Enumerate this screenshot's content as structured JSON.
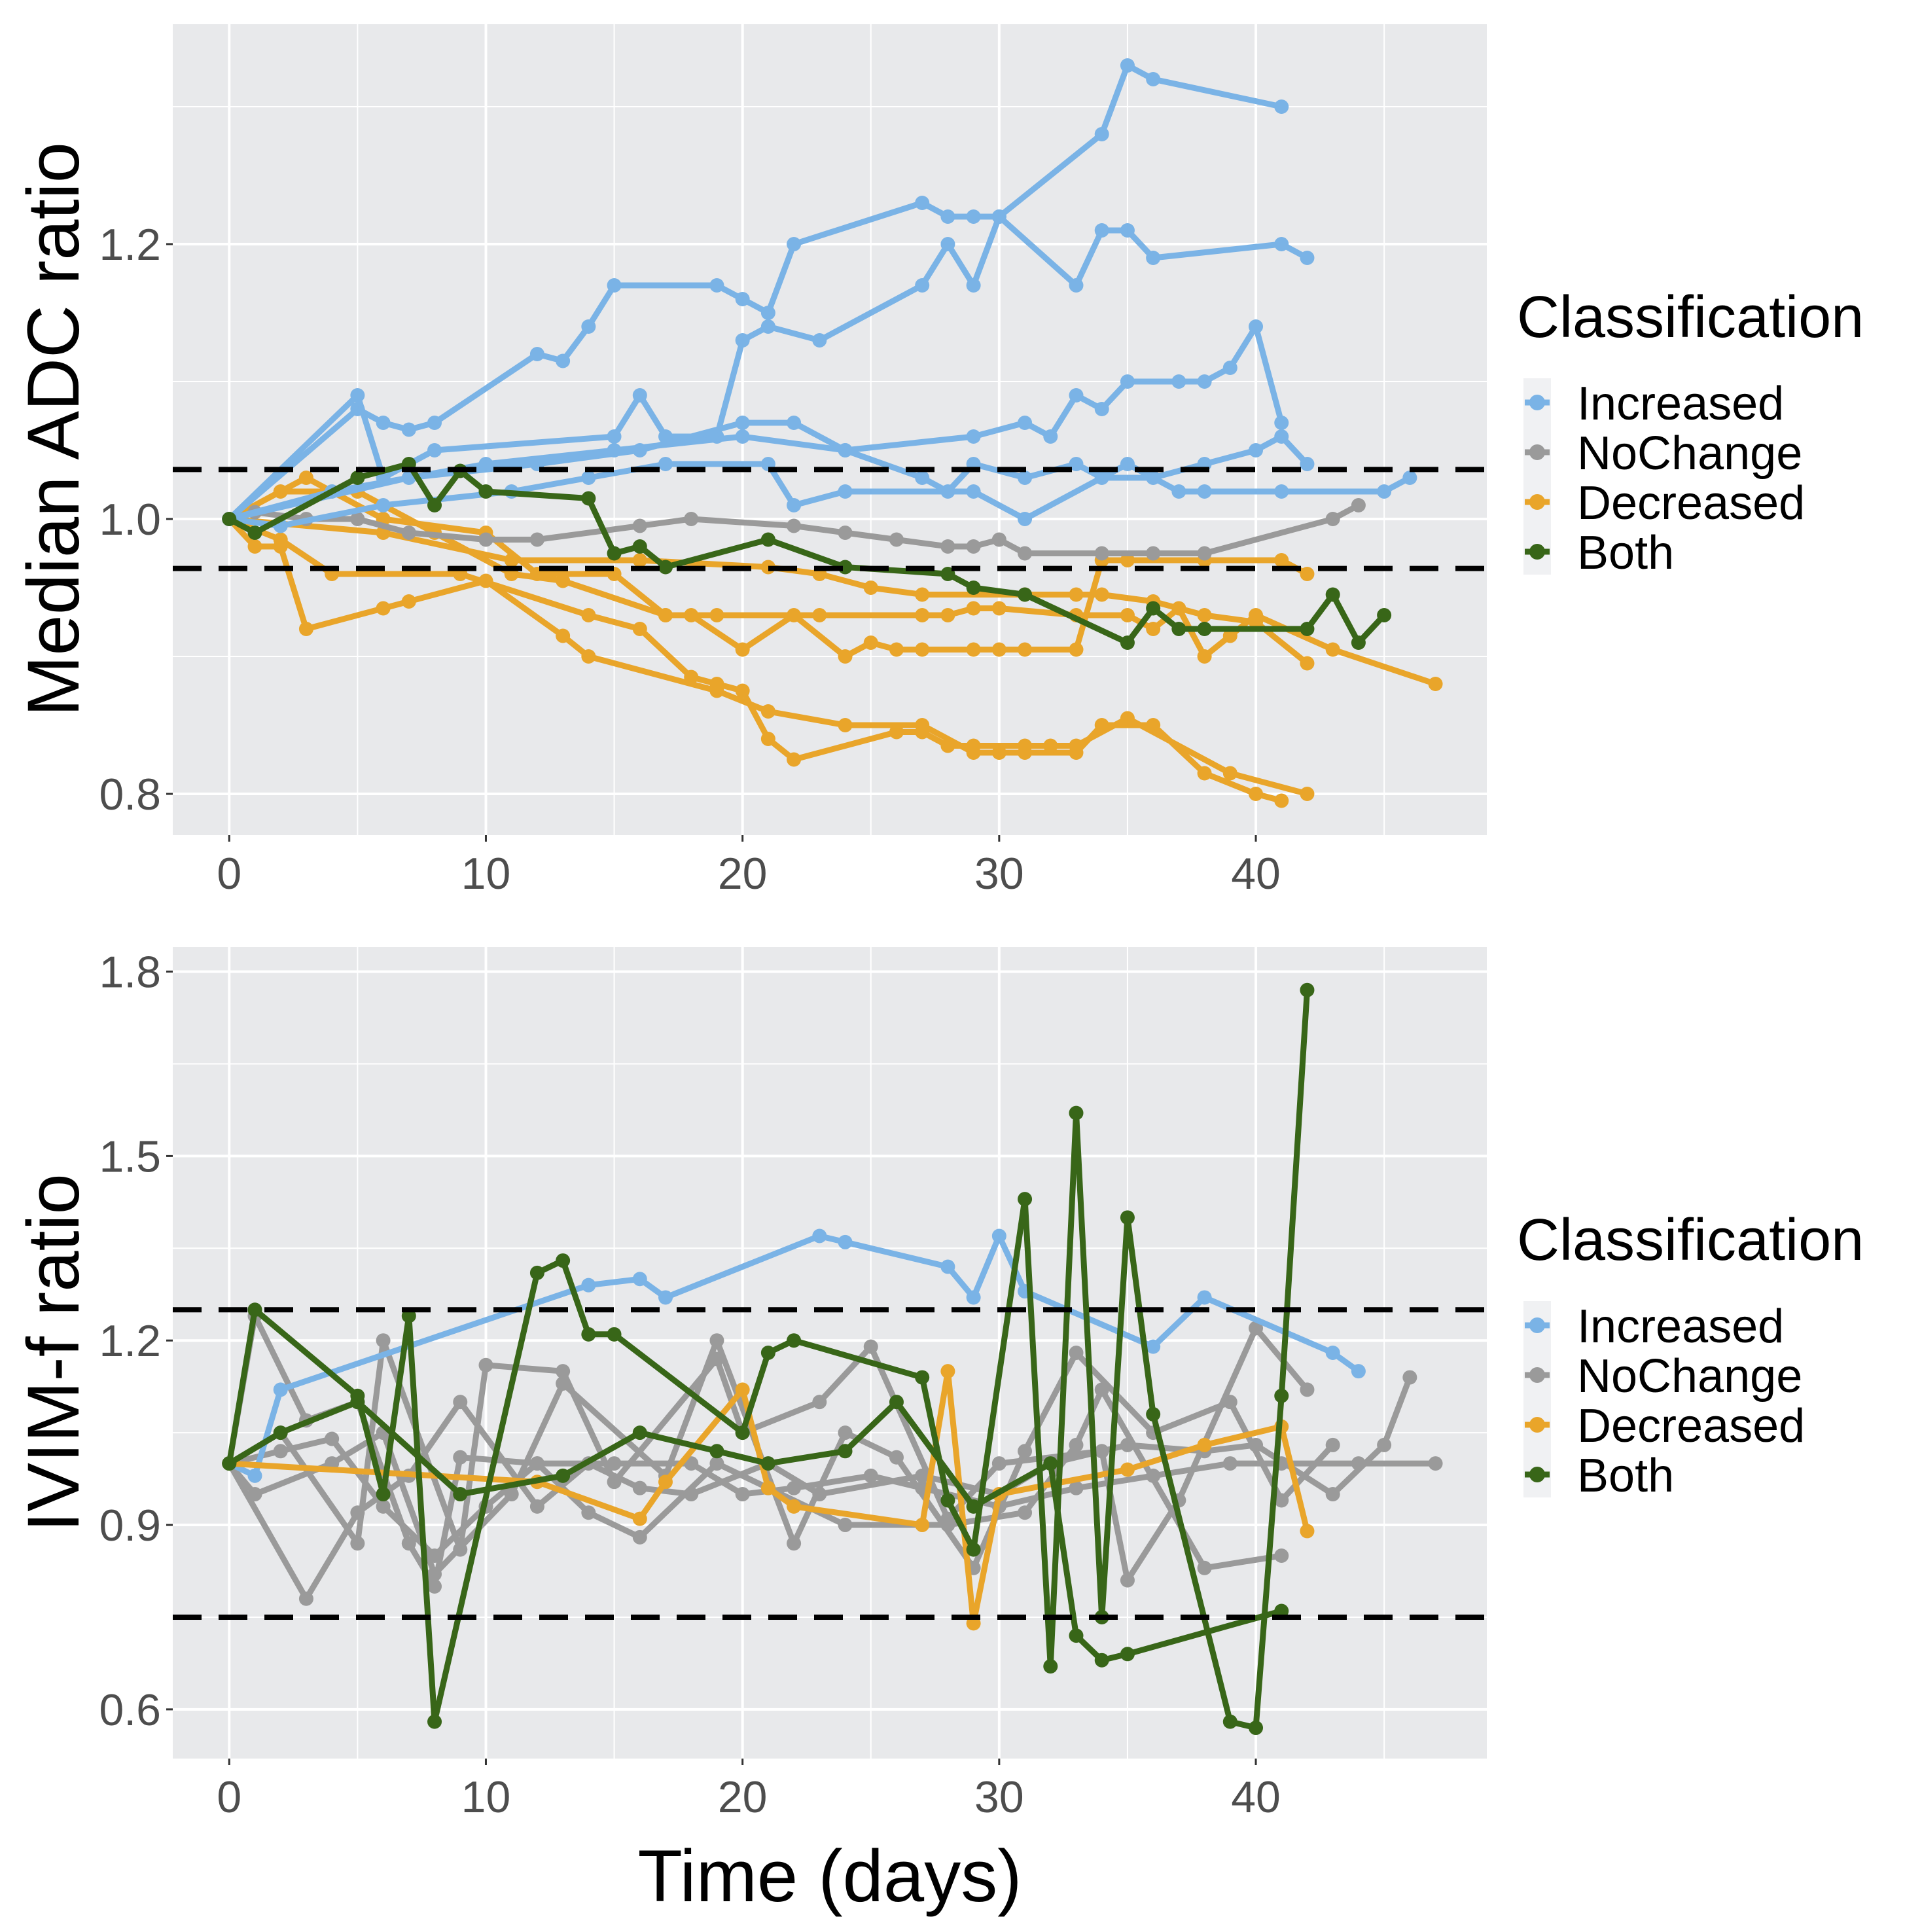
{
  "chart_data": [
    {
      "type": "line",
      "ylabel": "Median ADC ratio",
      "xlabel": "",
      "xlim": [
        -2.2,
        49
      ],
      "ylim": [
        0.77,
        1.36
      ],
      "xticks": [
        0,
        10,
        20,
        30,
        40
      ],
      "xtick_labels": [
        "0",
        "10",
        "20",
        "30",
        "40"
      ],
      "yticks": [
        0.8,
        1.0,
        1.2
      ],
      "ytick_labels": [
        "0.8",
        "1.0",
        "1.2"
      ],
      "grid": true,
      "thresholds": [
        1.036,
        0.964
      ],
      "legend": {
        "title": "Classification",
        "placement": "right"
      },
      "series": [
        {
          "name": "Increased",
          "x": [
            0,
            5,
            6,
            7,
            8,
            12,
            13,
            14,
            15,
            19,
            20,
            21,
            22,
            27,
            28,
            29,
            30,
            34,
            35,
            36,
            41
          ],
          "y": [
            1.0,
            1.08,
            1.07,
            1.065,
            1.07,
            1.12,
            1.115,
            1.14,
            1.17,
            1.17,
            1.16,
            1.15,
            1.2,
            1.23,
            1.22,
            1.22,
            1.22,
            1.28,
            1.33,
            1.32,
            1.3
          ]
        },
        {
          "name": "Increased",
          "x": [
            0,
            5,
            6,
            8,
            15,
            16,
            17,
            19,
            20,
            21,
            23,
            27,
            28,
            29,
            30,
            33,
            34,
            35,
            36,
            41,
            42
          ],
          "y": [
            1.0,
            1.09,
            1.03,
            1.05,
            1.06,
            1.09,
            1.06,
            1.06,
            1.13,
            1.14,
            1.13,
            1.17,
            1.2,
            1.17,
            1.22,
            1.17,
            1.21,
            1.21,
            1.19,
            1.2,
            1.19
          ]
        },
        {
          "name": "Increased",
          "x": [
            0,
            7,
            12,
            16,
            20,
            22,
            24,
            29,
            31,
            32,
            33,
            34,
            35,
            37,
            38,
            39,
            40,
            41
          ],
          "y": [
            1.0,
            1.03,
            1.04,
            1.05,
            1.07,
            1.07,
            1.05,
            1.06,
            1.07,
            1.06,
            1.09,
            1.08,
            1.1,
            1.1,
            1.1,
            1.11,
            1.14,
            1.07
          ]
        },
        {
          "name": "Increased",
          "x": [
            0,
            4,
            10,
            15,
            20,
            24,
            27,
            28,
            29,
            31,
            33,
            34,
            36,
            38,
            40,
            41,
            42
          ],
          "y": [
            1.0,
            1.02,
            1.04,
            1.05,
            1.06,
            1.05,
            1.03,
            1.02,
            1.04,
            1.03,
            1.04,
            1.03,
            1.03,
            1.04,
            1.05,
            1.06,
            1.04
          ]
        },
        {
          "name": "Increased",
          "x": [
            0,
            2,
            6,
            11,
            14,
            17,
            21,
            22,
            24,
            29,
            31,
            35,
            37,
            38,
            41,
            45,
            46
          ],
          "y": [
            1.0,
            0.995,
            1.01,
            1.02,
            1.03,
            1.04,
            1.04,
            1.01,
            1.02,
            1.02,
            1.0,
            1.04,
            1.02,
            1.02,
            1.02,
            1.02,
            1.03
          ]
        },
        {
          "name": "NoChange",
          "x": [
            0,
            1,
            3,
            5,
            7,
            10,
            12,
            16,
            18,
            22,
            24,
            26,
            28,
            29,
            30,
            31,
            34,
            36,
            38,
            43,
            44
          ],
          "y": [
            1.0,
            1.005,
            1.0,
            1.0,
            0.99,
            0.985,
            0.985,
            0.995,
            1.0,
            0.995,
            0.99,
            0.985,
            0.98,
            0.98,
            0.985,
            0.975,
            0.975,
            0.975,
            0.975,
            1.0,
            1.01
          ]
        },
        {
          "name": "Decreased",
          "x": [
            0,
            1,
            2,
            3,
            6,
            7,
            10,
            13,
            14,
            19,
            21,
            24,
            27,
            29,
            30,
            31,
            33,
            34,
            36,
            38,
            40,
            41
          ],
          "y": [
            1.0,
            0.98,
            0.98,
            0.92,
            0.935,
            0.94,
            0.955,
            0.915,
            0.9,
            0.875,
            0.86,
            0.85,
            0.85,
            0.83,
            0.83,
            0.83,
            0.83,
            0.85,
            0.85,
            0.815,
            0.8,
            0.795
          ]
        },
        {
          "name": "Decreased",
          "x": [
            0,
            2,
            4,
            9,
            14,
            16,
            18,
            19,
            20,
            21,
            22,
            26,
            27,
            28,
            29,
            31,
            32,
            33,
            35,
            39,
            42
          ],
          "y": [
            1.0,
            0.985,
            0.96,
            0.96,
            0.93,
            0.92,
            0.885,
            0.88,
            0.875,
            0.84,
            0.825,
            0.845,
            0.845,
            0.835,
            0.835,
            0.835,
            0.835,
            0.835,
            0.855,
            0.815,
            0.8
          ]
        },
        {
          "name": "Decreased",
          "x": [
            0,
            2,
            5,
            8,
            11,
            13,
            17,
            18,
            20,
            22,
            24,
            25,
            26,
            27,
            29,
            30,
            31,
            33,
            34,
            35,
            38,
            41,
            42
          ],
          "y": [
            1.0,
            1.02,
            1.02,
            0.99,
            0.96,
            0.955,
            0.93,
            0.93,
            0.905,
            0.93,
            0.9,
            0.91,
            0.905,
            0.905,
            0.905,
            0.905,
            0.905,
            0.905,
            0.97,
            0.97,
            0.97,
            0.97,
            0.96
          ]
        },
        {
          "name": "Decreased",
          "x": [
            0,
            3,
            6,
            10,
            12,
            15,
            17,
            19,
            23,
            27,
            28,
            29,
            30,
            33,
            35,
            36,
            37,
            38,
            39,
            40,
            43,
            47
          ],
          "y": [
            1.0,
            1.03,
            1.0,
            0.99,
            0.96,
            0.96,
            0.93,
            0.93,
            0.93,
            0.93,
            0.93,
            0.935,
            0.935,
            0.93,
            0.93,
            0.92,
            0.935,
            0.9,
            0.915,
            0.93,
            0.905,
            0.88
          ]
        },
        {
          "name": "Decreased",
          "x": [
            0,
            6,
            11,
            16,
            21,
            23,
            25,
            27,
            31,
            33,
            34,
            36,
            38,
            40,
            42
          ],
          "y": [
            1.0,
            0.99,
            0.97,
            0.97,
            0.965,
            0.96,
            0.95,
            0.945,
            0.945,
            0.945,
            0.945,
            0.94,
            0.93,
            0.925,
            0.895
          ]
        },
        {
          "name": "Both",
          "x": [
            0,
            1,
            5,
            7,
            8,
            9,
            10,
            14,
            15,
            16,
            17,
            21,
            24,
            28,
            29,
            31,
            35,
            36,
            37,
            38,
            42,
            43,
            44,
            45
          ],
          "y": [
            1.0,
            0.99,
            1.03,
            1.04,
            1.01,
            1.035,
            1.02,
            1.015,
            0.975,
            0.98,
            0.965,
            0.985,
            0.965,
            0.96,
            0.95,
            0.945,
            0.91,
            0.935,
            0.92,
            0.92,
            0.92,
            0.945,
            0.91,
            0.93
          ]
        }
      ]
    },
    {
      "type": "line",
      "ylabel": "IVIM-f ratio",
      "xlabel": "Time (days)",
      "xlim": [
        -2.2,
        49
      ],
      "ylim": [
        0.52,
        1.84
      ],
      "xticks": [
        0,
        10,
        20,
        30,
        40
      ],
      "xtick_labels": [
        "0",
        "10",
        "20",
        "30",
        "40"
      ],
      "yticks": [
        0.6,
        0.9,
        1.2,
        1.5,
        1.8
      ],
      "ytick_labels": [
        "0.6",
        "0.9",
        "1.2",
        "1.5",
        "1.8"
      ],
      "grid": true,
      "thresholds": [
        1.25,
        0.75
      ],
      "legend": {
        "title": "Classification",
        "placement": "right"
      },
      "series": [
        {
          "name": "Increased",
          "x": [
            0,
            1,
            2,
            14,
            16,
            17,
            23,
            24,
            28,
            29,
            30,
            31,
            36,
            38,
            43,
            44
          ],
          "y": [
            1.0,
            0.98,
            1.12,
            1.29,
            1.3,
            1.27,
            1.37,
            1.36,
            1.32,
            1.27,
            1.37,
            1.28,
            1.19,
            1.27,
            1.18,
            1.15
          ]
        },
        {
          "name": "NoChange",
          "x": [
            0,
            1,
            3,
            5,
            7,
            8,
            9,
            12,
            14,
            16,
            19,
            21,
            24,
            28,
            31,
            33,
            34,
            38,
            41
          ],
          "y": [
            1.0,
            1.24,
            1.07,
            1.1,
            0.87,
            0.8,
            1.01,
            1.0,
            0.92,
            0.88,
            1.0,
            0.96,
            0.9,
            0.9,
            0.92,
            1.03,
            1.12,
            0.83,
            0.85
          ]
        },
        {
          "name": "NoChange",
          "x": [
            0,
            2,
            5,
            6,
            9,
            10,
            13,
            15,
            19,
            20,
            23,
            25,
            28,
            30,
            34,
            35,
            37,
            40,
            42
          ],
          "y": [
            1.0,
            1.05,
            0.87,
            1.2,
            0.86,
            1.16,
            1.15,
            0.97,
            1.17,
            1.05,
            1.1,
            1.19,
            0.91,
            1.0,
            1.02,
            0.81,
            0.94,
            1.22,
            1.12
          ]
        },
        {
          "name": "NoChange",
          "x": [
            0,
            1,
            4,
            6,
            8,
            11,
            13,
            17,
            19,
            22,
            24,
            26,
            29,
            31,
            33,
            36,
            39,
            41,
            43
          ],
          "y": [
            1.0,
            0.95,
            1.0,
            1.05,
            0.82,
            0.95,
            1.13,
            0.98,
            1.2,
            0.87,
            1.05,
            1.01,
            0.83,
            1.02,
            1.18,
            1.05,
            1.1,
            0.94,
            1.03
          ]
        },
        {
          "name": "NoChange",
          "x": [
            0,
            3,
            5,
            7,
            9,
            12,
            14,
            16,
            18,
            21,
            23,
            27,
            30,
            32,
            35,
            38,
            40,
            43,
            45,
            46
          ],
          "y": [
            1.0,
            0.78,
            0.92,
            0.98,
            1.1,
            0.93,
            1.0,
            0.96,
            0.95,
            1.0,
            0.95,
            0.98,
            0.95,
            1.0,
            1.03,
            1.02,
            1.03,
            0.95,
            1.03,
            1.14
          ]
        },
        {
          "name": "NoChange",
          "x": [
            0,
            2,
            4,
            6,
            8,
            10,
            12,
            15,
            18,
            20,
            22,
            25,
            27,
            30,
            33,
            36,
            39,
            41,
            44,
            47
          ],
          "y": [
            1.0,
            1.02,
            1.04,
            0.93,
            0.85,
            0.93,
            1.0,
            1.0,
            1.0,
            0.95,
            0.96,
            0.98,
            0.96,
            0.93,
            0.96,
            0.98,
            1.0,
            1.0,
            1.0,
            1.0
          ]
        },
        {
          "name": "Decreased",
          "x": [
            0,
            12,
            16,
            17,
            20,
            21,
            22,
            27,
            28,
            29,
            30,
            35,
            38,
            41,
            42
          ],
          "y": [
            1.0,
            0.97,
            0.91,
            0.97,
            1.12,
            0.96,
            0.93,
            0.9,
            1.15,
            0.74,
            0.95,
            0.99,
            1.03,
            1.06,
            0.89
          ]
        },
        {
          "name": "Both",
          "x": [
            0,
            1,
            5,
            6,
            7,
            8,
            12,
            13,
            14,
            15,
            20,
            21,
            22,
            27,
            28,
            29,
            31,
            32,
            33,
            34,
            35,
            36,
            39,
            40,
            41,
            42
          ],
          "y": [
            1.0,
            1.25,
            1.11,
            0.95,
            1.24,
            0.58,
            1.31,
            1.33,
            1.21,
            1.21,
            1.05,
            1.18,
            1.2,
            1.14,
            0.94,
            0.86,
            1.43,
            0.67,
            1.57,
            0.75,
            1.4,
            1.08,
            0.58,
            0.57,
            1.11,
            1.77
          ]
        },
        {
          "name": "Both",
          "x": [
            0,
            2,
            5,
            9,
            13,
            16,
            19,
            21,
            24,
            26,
            29,
            32,
            33,
            34,
            35,
            41
          ],
          "y": [
            1.0,
            1.05,
            1.1,
            0.95,
            0.98,
            1.05,
            1.02,
            1.0,
            1.02,
            1.1,
            0.93,
            1.0,
            0.72,
            0.68,
            0.69,
            0.76
          ]
        }
      ]
    }
  ],
  "legend": {
    "title": "Classification",
    "items": [
      {
        "label": "Increased",
        "color": "#7ab3e6"
      },
      {
        "label": "NoChange",
        "color": "#9a9a9a"
      },
      {
        "label": "Decreased",
        "color": "#e9a52a"
      },
      {
        "label": "Both",
        "color": "#386618"
      }
    ]
  },
  "colors": {
    "Increased": "#7ab3e6",
    "NoChange": "#9a9a9a",
    "Decreased": "#e9a52a",
    "Both": "#386618",
    "panel": "#e8e9eb",
    "grid": "#ffffff",
    "threshold": "#000000"
  }
}
